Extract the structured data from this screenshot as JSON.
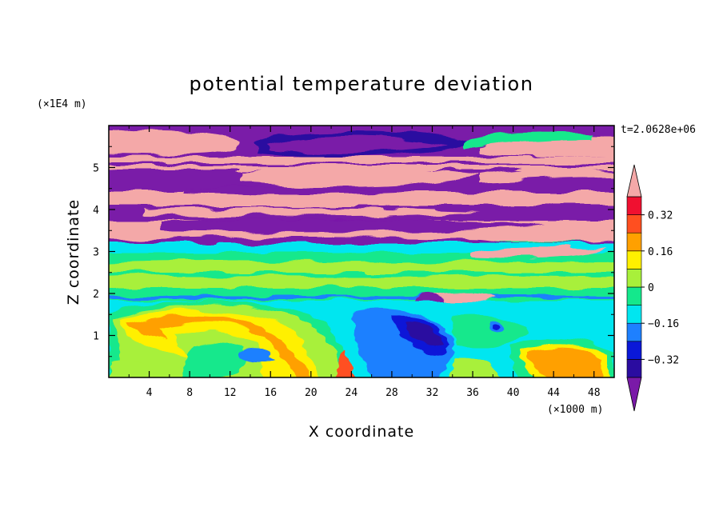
{
  "chart_data": {
    "type": "heatmap",
    "title": "potential temperature deviation",
    "xlabel": "X coordinate",
    "ylabel": "Z coordinate",
    "x_unit": "(×1000 m)",
    "y_unit": "(×1E4 m)",
    "time_label": "t=2.0628e+06",
    "xlim": [
      0,
      50
    ],
    "ylim": [
      0,
      6
    ],
    "x_ticks": [
      4,
      8,
      12,
      16,
      20,
      24,
      28,
      32,
      36,
      40,
      44,
      48
    ],
    "y_ticks": [
      1,
      2,
      3,
      4,
      5
    ],
    "colorbar": {
      "levels": [
        -0.4,
        -0.32,
        -0.24,
        -0.16,
        -0.08,
        0,
        0.08,
        0.16,
        0.24,
        0.32,
        0.4
      ],
      "labeled_levels": [
        0.32,
        0.16,
        0,
        -0.16,
        -0.32
      ],
      "labels": [
        "0.32",
        "0.16",
        "0",
        "−0.16",
        "−0.32"
      ],
      "colors": [
        "#7a1aa8",
        "#2a0ca0",
        "#0a18d8",
        "#1e80ff",
        "#00e6f0",
        "#14e88c",
        "#a8f03a",
        "#fff000",
        "#ffa000",
        "#ff4f20",
        "#f01030",
        "#f4a8a8"
      ],
      "extend": "both"
    },
    "bands": [
      {
        "z": [
          5.5,
          5.95
        ],
        "value": 0.5,
        "note": "upper pink"
      },
      {
        "z": [
          5.05,
          5.45
        ],
        "value": -0.5
      },
      {
        "z": [
          4.5,
          5.0
        ],
        "value": -0.5
      },
      {
        "z": [
          4.2,
          4.5
        ],
        "value": 0.5
      },
      {
        "z": [
          3.7,
          4.05
        ],
        "value": -0.5
      },
      {
        "z": [
          3.3,
          3.75
        ],
        "value": 0.5
      },
      {
        "z": [
          3.0,
          3.3
        ],
        "value": -0.5
      },
      {
        "z": [
          1.9,
          3.0
        ],
        "value": 0.0
      }
    ]
  }
}
